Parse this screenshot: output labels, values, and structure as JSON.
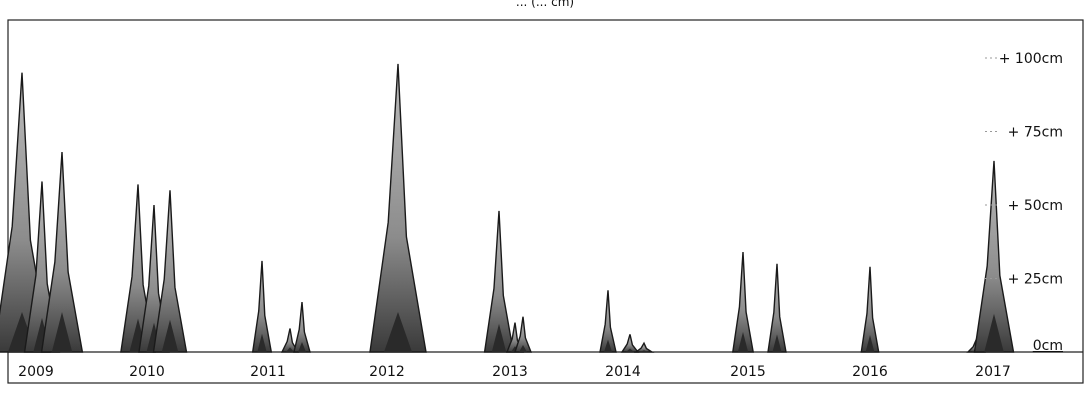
{
  "chart_data": {
    "type": "area",
    "title": "",
    "subtitle_partial": "... (... cm)",
    "xlabel": "",
    "ylabel": "",
    "ylim": [
      0,
      110
    ],
    "y_ticks": [
      {
        "value": 0,
        "label": "0cm"
      },
      {
        "value": 25,
        "label": "+ 25cm"
      },
      {
        "value": 50,
        "label": "+ 50cm"
      },
      {
        "value": 75,
        "label": "+ 75cm"
      },
      {
        "value": 100,
        "label": "+ 100cm"
      }
    ],
    "categories": [
      "2009",
      "2010",
      "2011",
      "2012",
      "2013",
      "2014",
      "2015",
      "2016",
      "2017"
    ],
    "grid": false,
    "peaks": [
      {
        "year": "2009",
        "values": [
          95,
          58,
          68
        ]
      },
      {
        "year": "2010",
        "values": [
          57,
          50,
          55
        ]
      },
      {
        "year": "2011",
        "values": [
          31,
          8,
          17
        ]
      },
      {
        "year": "2012",
        "values": [
          98
        ]
      },
      {
        "year": "2013",
        "values": [
          48,
          10,
          12
        ]
      },
      {
        "year": "2014",
        "values": [
          21,
          6,
          3
        ]
      },
      {
        "year": "2015",
        "values": [
          34,
          30
        ]
      },
      {
        "year": "2016",
        "values": [
          29
        ]
      },
      {
        "year": "2017",
        "values": [
          4,
          65
        ]
      }
    ],
    "colors": {
      "fill_light": "#cfcfcf",
      "fill_mid": "#8a8a8a",
      "fill_dark": "#2a2a2a",
      "frame": "#222222"
    }
  }
}
